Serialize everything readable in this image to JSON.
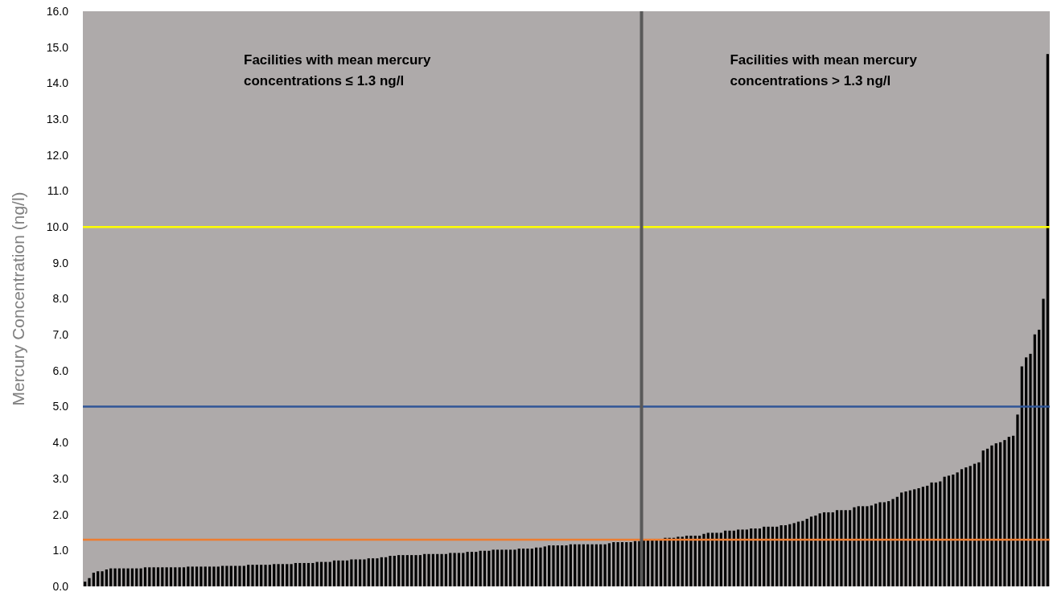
{
  "chart_data": {
    "type": "bar",
    "ylabel": "Mercury  Concentration (ng/l)",
    "annotations": [
      "Facilities with mean mercury concentrations ≤ 1.3 ng/l",
      "Facilities with mean mercury concentrations > 1.3 ng/l"
    ],
    "categories": [
      null,
      null,
      null,
      null,
      null,
      null,
      null,
      null,
      null,
      null,
      null,
      null,
      null,
      null,
      null,
      null,
      null,
      null,
      null,
      null,
      null,
      null,
      null,
      null,
      null,
      null,
      null,
      null,
      null,
      null,
      null,
      null,
      null,
      null,
      null,
      null,
      null,
      null,
      null,
      null,
      null,
      null,
      null,
      null,
      null,
      null,
      null,
      null,
      null,
      null,
      null,
      null,
      null,
      null,
      null,
      null,
      null,
      null,
      null,
      null,
      null,
      null,
      null,
      null,
      null,
      null,
      null,
      null,
      null,
      null,
      null,
      null,
      null,
      null,
      null,
      null,
      null,
      null,
      null,
      null,
      null,
      null,
      null,
      null,
      null,
      null,
      null,
      null,
      null,
      null,
      null,
      null,
      null,
      null,
      null,
      null,
      null,
      null,
      null,
      null,
      null,
      null,
      null,
      null,
      null,
      null,
      null,
      null,
      null,
      null,
      null,
      null,
      null,
      null,
      null,
      null,
      null,
      null,
      null,
      null,
      null,
      null,
      null,
      null,
      null,
      null,
      null,
      null,
      null,
      null,
      null,
      null,
      null,
      null,
      null,
      null,
      null,
      null,
      null,
      null,
      null,
      null,
      null,
      null,
      null,
      null,
      null,
      null,
      null,
      null,
      null,
      null,
      null,
      null,
      null,
      null,
      null,
      null,
      null,
      null,
      null,
      null,
      null,
      null,
      null,
      null,
      null,
      null,
      null,
      null,
      null,
      null,
      null,
      null,
      null,
      null,
      null,
      null,
      null,
      null,
      null,
      null,
      null,
      null,
      null,
      null,
      null,
      null,
      null,
      null,
      null,
      null,
      null,
      null,
      null,
      null,
      null,
      null,
      null,
      null,
      null,
      null,
      null,
      null,
      null,
      null,
      null,
      null,
      null,
      null,
      null,
      null,
      null,
      null,
      null,
      null,
      null,
      null,
      null,
      null,
      null,
      null,
      null,
      null,
      null
    ],
    "values": [
      0.13,
      0.23,
      0.38,
      0.42,
      0.42,
      0.47,
      0.5,
      0.5,
      0.5,
      0.5,
      0.5,
      0.5,
      0.5,
      0.5,
      0.53,
      0.53,
      0.53,
      0.53,
      0.53,
      0.53,
      0.53,
      0.53,
      0.53,
      0.53,
      0.55,
      0.55,
      0.55,
      0.55,
      0.55,
      0.55,
      0.55,
      0.55,
      0.57,
      0.57,
      0.57,
      0.57,
      0.57,
      0.57,
      0.6,
      0.6,
      0.6,
      0.6,
      0.6,
      0.6,
      0.62,
      0.62,
      0.62,
      0.62,
      0.62,
      0.65,
      0.65,
      0.65,
      0.65,
      0.65,
      0.68,
      0.68,
      0.68,
      0.68,
      0.72,
      0.72,
      0.72,
      0.72,
      0.75,
      0.75,
      0.75,
      0.75,
      0.78,
      0.78,
      0.78,
      0.81,
      0.81,
      0.85,
      0.85,
      0.87,
      0.87,
      0.87,
      0.87,
      0.87,
      0.87,
      0.9,
      0.9,
      0.9,
      0.9,
      0.9,
      0.9,
      0.93,
      0.93,
      0.93,
      0.93,
      0.96,
      0.96,
      0.96,
      0.99,
      0.99,
      0.99,
      1.02,
      1.02,
      1.02,
      1.02,
      1.02,
      1.02,
      1.05,
      1.05,
      1.05,
      1.05,
      1.08,
      1.08,
      1.11,
      1.14,
      1.14,
      1.14,
      1.14,
      1.14,
      1.17,
      1.17,
      1.17,
      1.17,
      1.17,
      1.17,
      1.17,
      1.17,
      1.17,
      1.2,
      1.23,
      1.23,
      1.23,
      1.23,
      1.23,
      1.26,
      1.26,
      1.3,
      1.3,
      1.3,
      1.3,
      1.3,
      1.35,
      1.35,
      1.35,
      1.38,
      1.38,
      1.41,
      1.41,
      1.41,
      1.41,
      1.46,
      1.49,
      1.49,
      1.49,
      1.49,
      1.55,
      1.55,
      1.55,
      1.58,
      1.58,
      1.58,
      1.61,
      1.61,
      1.61,
      1.66,
      1.66,
      1.66,
      1.66,
      1.7,
      1.7,
      1.73,
      1.76,
      1.8,
      1.82,
      1.88,
      1.94,
      1.97,
      2.03,
      2.06,
      2.06,
      2.06,
      2.12,
      2.12,
      2.12,
      2.12,
      2.2,
      2.23,
      2.23,
      2.23,
      2.25,
      2.3,
      2.34,
      2.34,
      2.37,
      2.43,
      2.49,
      2.61,
      2.64,
      2.67,
      2.7,
      2.73,
      2.77,
      2.8,
      2.89,
      2.89,
      2.92,
      3.05,
      3.08,
      3.11,
      3.17,
      3.26,
      3.31,
      3.35,
      3.41,
      3.45,
      3.78,
      3.83,
      3.92,
      3.98,
      4.01,
      4.07,
      4.16,
      4.19,
      4.78,
      6.12,
      6.37,
      6.47,
      7.01,
      7.14,
      8.0,
      14.81
    ],
    "color": "#000000",
    "ylim": [
      0,
      16
    ],
    "yticks": [
      {
        "value": 0,
        "label": "0.0"
      },
      {
        "value": 1,
        "label": "1.0"
      },
      {
        "value": 2,
        "label": "2.0"
      },
      {
        "value": 3,
        "label": "3.0"
      },
      {
        "value": 4,
        "label": "4.0"
      },
      {
        "value": 5,
        "label": "5.0"
      },
      {
        "value": 6,
        "label": "6.0"
      },
      {
        "value": 7,
        "label": "7.0"
      },
      {
        "value": 8,
        "label": "8.0"
      },
      {
        "value": 9,
        "label": "9.0"
      },
      {
        "value": 10,
        "label": "10.0"
      },
      {
        "value": 11,
        "label": "11.0"
      },
      {
        "value": 12,
        "label": "12.0"
      },
      {
        "value": 13,
        "label": "13.0"
      },
      {
        "value": 14,
        "label": "14.0"
      },
      {
        "value": 15,
        "label": "15.0"
      },
      {
        "value": 16,
        "label": "16.0"
      }
    ],
    "tick_labels": "y",
    "ref_lines": [
      {
        "axis": "y",
        "value": 10,
        "color": "#ffff00"
      },
      {
        "axis": "y",
        "value": 5,
        "color": "#2f5597"
      },
      {
        "axis": "y",
        "value": 1.3,
        "color": "#ed7d31"
      }
    ]
  }
}
